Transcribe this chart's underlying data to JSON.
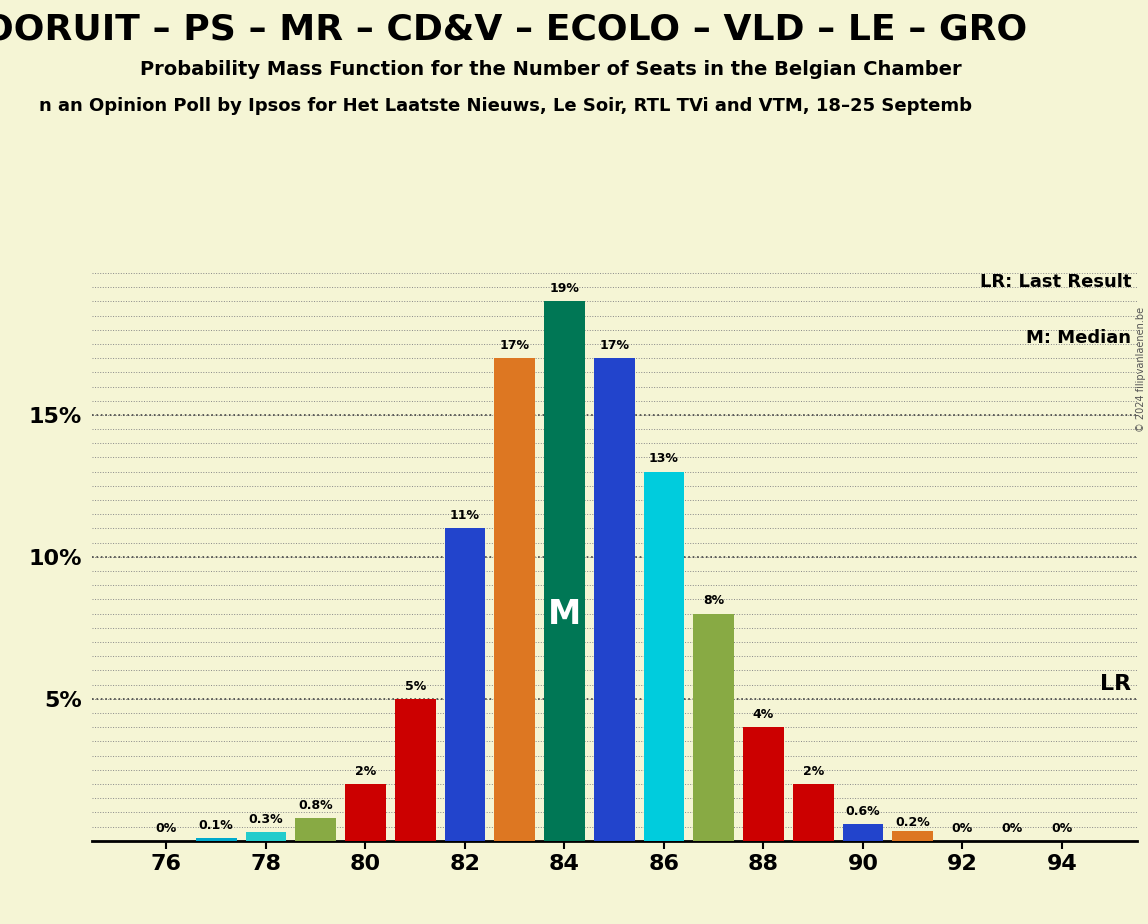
{
  "title_line1": "OORUIT – PS – MR – CD&V – ECOLO – VLD – LE – GRO",
  "title_line2": "Probability Mass Function for the Number of Seats in the Belgian Chamber",
  "title_line3": "n an Opinion Poll by Ipsos for Het Laatste Nieuws, Le Soir, RTL TVi and VTM, 18–25 Septemb",
  "seats": [
    76,
    77,
    78,
    79,
    80,
    81,
    82,
    83,
    84,
    85,
    86,
    87,
    88,
    89,
    90,
    91,
    92,
    93,
    94
  ],
  "probabilities": [
    0.0,
    0.1,
    0.3,
    0.8,
    2.0,
    5.0,
    11.0,
    17.0,
    19.0,
    17.0,
    13.0,
    8.0,
    4.0,
    2.0,
    0.6,
    0.2,
    0.0,
    0.0,
    0.0
  ],
  "bar_colors": [
    "#cc0000",
    "#00aacc",
    "#22cccc",
    "#88aa44",
    "#cc0000",
    "#cc0000",
    "#2244cc",
    "#dd7722",
    "#007755",
    "#2244cc",
    "#00ccdd",
    "#88aa44",
    "#cc0000",
    "#cc0000",
    "#2244cc",
    "#dd7722",
    "#cc0000",
    "#cc0000",
    "#cc0000"
  ],
  "label_map": {
    "76": "0%",
    "77": "0.1%",
    "78": "0.3%",
    "79": "0.8%",
    "80": "2%",
    "81": "5%",
    "82": "11%",
    "83": "17%",
    "84": "19%",
    "85": "17%",
    "86": "13%",
    "87": "8%",
    "88": "4%",
    "89": "2%",
    "90": "0.6%",
    "91": "0.2%",
    "92": "0%",
    "93": "0%",
    "94": "0%"
  },
  "lr_seat": 91,
  "lr_bar_color": "#dd7722",
  "lr_bar_height": 0.35,
  "median_seat": 84,
  "background_color": "#f5f5d5",
  "ylim": [
    0,
    20.5
  ],
  "ytick_positions": [
    5,
    10,
    15
  ],
  "ytick_labels": [
    "5%",
    "10%",
    "15%"
  ],
  "xtick_positions": [
    76,
    78,
    80,
    82,
    84,
    86,
    88,
    90,
    92,
    94
  ],
  "copyright": "© 2024 filipvanlaenen.be",
  "bar_width": 0.82
}
